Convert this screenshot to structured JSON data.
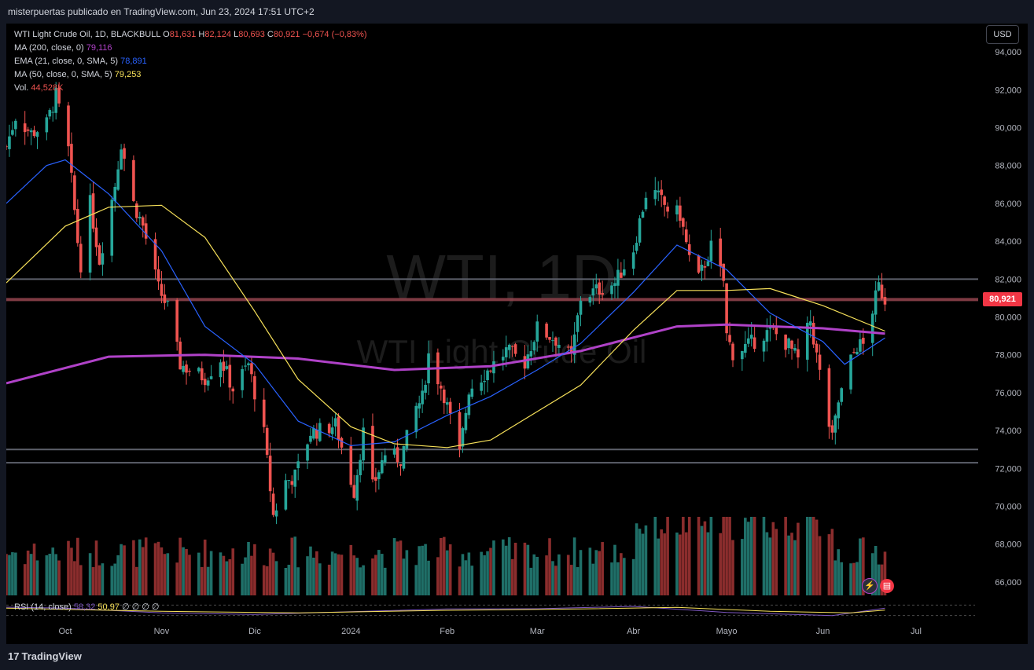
{
  "header": {
    "publisher_line": "misterpuertas publicado en TradingView.com, Jun 23, 2024 17:51 UTC+2"
  },
  "legend": {
    "symbol": "WTI Light Crude Oil, 1D, BLACKBULL",
    "o_label": "O",
    "o": "81,631",
    "h_label": "H",
    "h": "82,124",
    "l_label": "L",
    "l": "80,693",
    "c_label": "C",
    "c": "80,921",
    "change": "−0,674 (−0,83%)",
    "ma200_label": "MA (200, close, 0)",
    "ma200_value": "79,116",
    "ema_label": "EMA (21, close, 0, SMA, 5)",
    "ema_value": "78,891",
    "ma50_label": "MA (50, close, 0, SMA, 5)",
    "ma50_value": "79,253",
    "vol_label": "Vol.",
    "vol_value": "44,528K"
  },
  "currency_button": "USD",
  "current_price_tag": "80,921",
  "watermark": {
    "symbol": "WTI, 1D",
    "name": "WTI Light Crude Oil"
  },
  "rsi": {
    "label": "RSI (14, close)",
    "value1": "58,32",
    "value2": "50,97",
    "extra": "∅ ∅ ∅ ∅"
  },
  "footer": {
    "brand": "TradingView"
  },
  "colors": {
    "up": "#26a69a",
    "down": "#ef5350",
    "ma200": "#b042c8",
    "ema21": "#2962ff",
    "ma50": "#f7e15a",
    "vol_up": "#1f6f68",
    "vol_down": "#8b2d2d"
  },
  "chart_data": {
    "type": "candlestick",
    "y_axis": {
      "range": [
        65000,
        95500
      ],
      "ticks": [
        "94,000",
        "92,000",
        "90,000",
        "88,000",
        "86,000",
        "84,000",
        "82,000",
        "80,000",
        "78,000",
        "76,000",
        "74,000",
        "72,000",
        "70,000",
        "68,000",
        "66,000"
      ],
      "tick_values": [
        94000,
        92000,
        90000,
        88000,
        86000,
        84000,
        82000,
        80000,
        78000,
        76000,
        74000,
        72000,
        70000,
        68000,
        66000
      ]
    },
    "x_axis": {
      "labels": [
        "Oct",
        "Nov",
        "Dic",
        "2024",
        "Feb",
        "Mar",
        "Abr",
        "Mayo",
        "Jun",
        "Jul"
      ],
      "label_dates": [
        "2023-10-01",
        "2023-11-01",
        "2023-12-01",
        "2024-01-01",
        "2024-02-01",
        "2024-03-01",
        "2024-04-01",
        "2024-05-01",
        "2024-06-01",
        "2024-07-01"
      ],
      "range": [
        "2023-09-12",
        "2024-07-20"
      ]
    },
    "horizontal_levels": [
      82000,
      80921,
      73000,
      72300
    ],
    "close_path": [
      [
        "2023-09-12",
        89000
      ],
      [
        "2023-09-15",
        90600
      ],
      [
        "2023-09-20",
        89700
      ],
      [
        "2023-09-25",
        90200
      ],
      [
        "2023-09-28",
        91700
      ],
      [
        "2023-10-02",
        88800
      ],
      [
        "2023-10-05",
        84000
      ],
      [
        "2023-10-06",
        82800
      ],
      [
        "2023-10-09",
        86000
      ],
      [
        "2023-10-12",
        83000
      ],
      [
        "2023-10-17",
        87000
      ],
      [
        "2023-10-19",
        89200
      ],
      [
        "2023-10-23",
        86000
      ],
      [
        "2023-10-26",
        84800
      ],
      [
        "2023-10-31",
        81500
      ],
      [
        "2023-11-03",
        80500
      ],
      [
        "2023-11-07",
        77500
      ],
      [
        "2023-11-10",
        77200
      ],
      [
        "2023-11-15",
        76800
      ],
      [
        "2023-11-20",
        77800
      ],
      [
        "2023-11-24",
        76200
      ],
      [
        "2023-11-29",
        77500
      ],
      [
        "2023-12-04",
        73800
      ],
      [
        "2023-12-07",
        69500
      ],
      [
        "2023-12-11",
        71300
      ],
      [
        "2023-12-14",
        71600
      ],
      [
        "2023-12-19",
        73900
      ],
      [
        "2023-12-22",
        74000
      ],
      [
        "2023-12-27",
        74300
      ],
      [
        "2024-01-02",
        70800
      ],
      [
        "2024-01-05",
        73900
      ],
      [
        "2024-01-08",
        71000
      ],
      [
        "2024-01-12",
        72800
      ],
      [
        "2024-01-17",
        72500
      ],
      [
        "2024-01-22",
        75200
      ],
      [
        "2024-01-24",
        75700
      ],
      [
        "2024-01-26",
        78000
      ],
      [
        "2024-01-31",
        75900
      ],
      [
        "2024-02-05",
        72700
      ],
      [
        "2024-02-08",
        76200
      ],
      [
        "2024-02-13",
        77000
      ],
      [
        "2024-02-20",
        78200
      ],
      [
        "2024-02-26",
        77600
      ],
      [
        "2024-03-01",
        79400
      ],
      [
        "2024-03-07",
        78800
      ],
      [
        "2024-03-12",
        77800
      ],
      [
        "2024-03-15",
        81000
      ],
      [
        "2024-03-20",
        81400
      ],
      [
        "2024-03-26",
        81800
      ],
      [
        "2024-04-01",
        83600
      ],
      [
        "2024-04-05",
        86500
      ],
      [
        "2024-04-08",
        86500
      ],
      [
        "2024-04-12",
        85700
      ],
      [
        "2024-04-16",
        85400
      ],
      [
        "2024-04-19",
        83100
      ],
      [
        "2024-04-22",
        82000
      ],
      [
        "2024-04-26",
        83700
      ],
      [
        "2024-04-30",
        81900
      ],
      [
        "2024-05-01",
        79000
      ],
      [
        "2024-05-03",
        78100
      ],
      [
        "2024-05-08",
        78500
      ],
      [
        "2024-05-13",
        79100
      ],
      [
        "2024-05-16",
        79200
      ],
      [
        "2024-05-21",
        78500
      ],
      [
        "2024-05-24",
        77700
      ],
      [
        "2024-05-28",
        79800
      ],
      [
        "2024-05-31",
        77000
      ],
      [
        "2024-06-03",
        74300
      ],
      [
        "2024-06-04",
        73500
      ],
      [
        "2024-06-06",
        75500
      ],
      [
        "2024-06-10",
        77700
      ],
      [
        "2024-06-12",
        78500
      ],
      [
        "2024-06-14",
        78500
      ],
      [
        "2024-06-17",
        80400
      ],
      [
        "2024-06-19",
        81600
      ],
      [
        "2024-06-21",
        80921
      ]
    ],
    "ma200": [
      [
        "2023-09-12",
        76500
      ],
      [
        "2023-10-15",
        77900
      ],
      [
        "2023-11-15",
        78000
      ],
      [
        "2023-12-15",
        77800
      ],
      [
        "2024-01-15",
        77200
      ],
      [
        "2024-02-15",
        77400
      ],
      [
        "2024-03-15",
        78200
      ],
      [
        "2024-04-15",
        79500
      ],
      [
        "2024-05-01",
        79600
      ],
      [
        "2024-06-01",
        79400
      ],
      [
        "2024-06-21",
        79116
      ]
    ],
    "ema21": [
      [
        "2023-09-12",
        86000
      ],
      [
        "2023-09-25",
        88000
      ],
      [
        "2023-10-01",
        88300
      ],
      [
        "2023-10-15",
        86500
      ],
      [
        "2023-11-01",
        83500
      ],
      [
        "2023-11-15",
        79500
      ],
      [
        "2023-12-01",
        77500
      ],
      [
        "2023-12-15",
        74500
      ],
      [
        "2024-01-01",
        73200
      ],
      [
        "2024-01-15",
        73400
      ],
      [
        "2024-02-01",
        74800
      ],
      [
        "2024-02-15",
        75800
      ],
      [
        "2024-03-01",
        77200
      ],
      [
        "2024-03-15",
        78600
      ],
      [
        "2024-04-01",
        81300
      ],
      [
        "2024-04-15",
        83800
      ],
      [
        "2024-05-01",
        82500
      ],
      [
        "2024-05-15",
        80200
      ],
      [
        "2024-06-01",
        78700
      ],
      [
        "2024-06-08",
        77500
      ],
      [
        "2024-06-21",
        78891
      ]
    ],
    "ma50": [
      [
        "2023-09-12",
        81800
      ],
      [
        "2023-10-01",
        84800
      ],
      [
        "2023-10-15",
        85800
      ],
      [
        "2023-11-01",
        85900
      ],
      [
        "2023-11-15",
        84200
      ],
      [
        "2023-12-01",
        80300
      ],
      [
        "2023-12-15",
        76700
      ],
      [
        "2024-01-01",
        74200
      ],
      [
        "2024-01-15",
        73300
      ],
      [
        "2024-02-01",
        73100
      ],
      [
        "2024-02-15",
        73500
      ],
      [
        "2024-03-01",
        75000
      ],
      [
        "2024-03-15",
        76400
      ],
      [
        "2024-04-01",
        79300
      ],
      [
        "2024-04-15",
        81400
      ],
      [
        "2024-05-01",
        81400
      ],
      [
        "2024-05-15",
        81500
      ],
      [
        "2024-06-01",
        80600
      ],
      [
        "2024-06-21",
        79253
      ]
    ],
    "rsi": [
      [
        "2023-09-12",
        62
      ],
      [
        "2023-10-01",
        58
      ],
      [
        "2023-11-01",
        40
      ],
      [
        "2023-12-01",
        34
      ],
      [
        "2024-01-01",
        45
      ],
      [
        "2024-02-01",
        55
      ],
      [
        "2024-03-01",
        56
      ],
      [
        "2024-04-01",
        65
      ],
      [
        "2024-05-01",
        42
      ],
      [
        "2024-06-04",
        30
      ],
      [
        "2024-06-21",
        58.32
      ]
    ],
    "rsi_ma": [
      [
        "2023-09-12",
        58
      ],
      [
        "2023-11-01",
        46
      ],
      [
        "2023-12-15",
        40
      ],
      [
        "2024-02-01",
        50
      ],
      [
        "2024-03-15",
        55
      ],
      [
        "2024-04-15",
        61
      ],
      [
        "2024-05-15",
        46
      ],
      [
        "2024-06-10",
        40
      ],
      [
        "2024-06-21",
        50.97
      ]
    ]
  }
}
